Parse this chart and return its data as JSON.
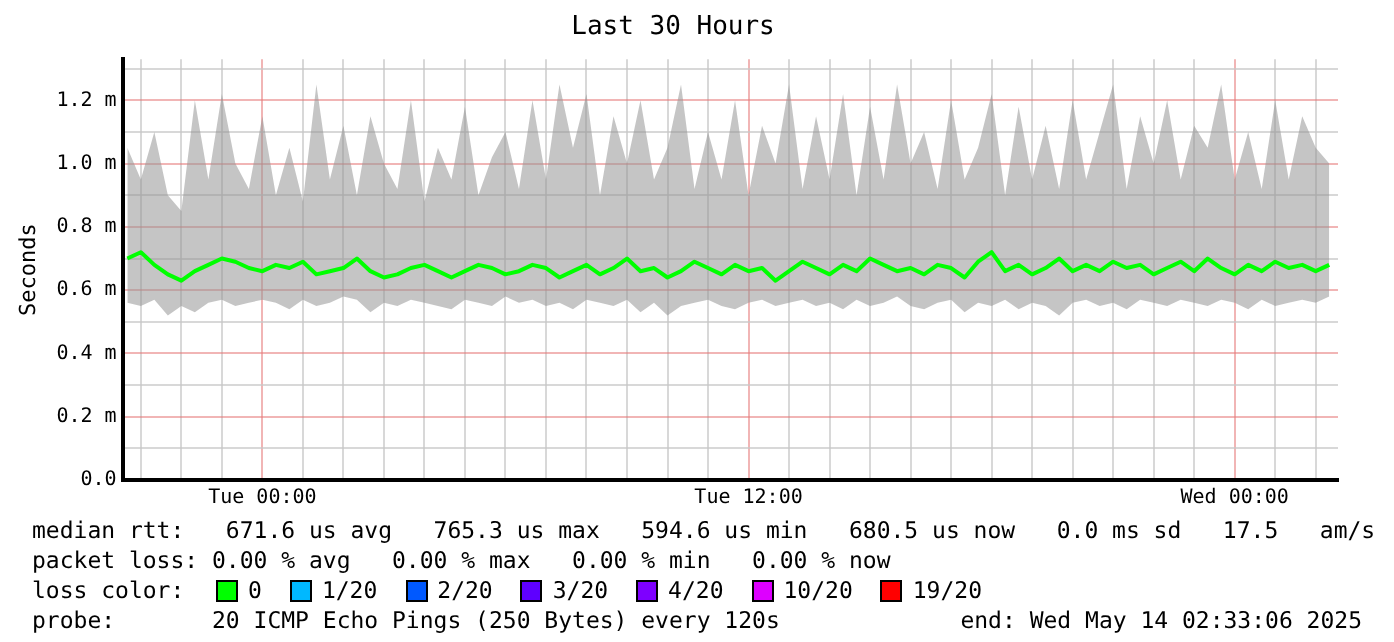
{
  "chart_data": {
    "type": "line",
    "title": "Last 30 Hours",
    "ylabel": "Seconds",
    "x": [
      "2025-05-12T20:40",
      "2025-05-12T21:00",
      "2025-05-12T21:20",
      "2025-05-12T21:40",
      "2025-05-12T22:00",
      "2025-05-12T22:20",
      "2025-05-12T22:40",
      "2025-05-12T23:00",
      "2025-05-12T23:20",
      "2025-05-12T23:40",
      "2025-05-13T00:00",
      "2025-05-13T00:20",
      "2025-05-13T00:40",
      "2025-05-13T01:00",
      "2025-05-13T01:20",
      "2025-05-13T01:40",
      "2025-05-13T02:00",
      "2025-05-13T02:20",
      "2025-05-13T02:40",
      "2025-05-13T03:00",
      "2025-05-13T03:20",
      "2025-05-13T03:40",
      "2025-05-13T04:00",
      "2025-05-13T04:20",
      "2025-05-13T04:40",
      "2025-05-13T05:00",
      "2025-05-13T05:20",
      "2025-05-13T05:40",
      "2025-05-13T06:00",
      "2025-05-13T06:20",
      "2025-05-13T06:40",
      "2025-05-13T07:00",
      "2025-05-13T07:20",
      "2025-05-13T07:40",
      "2025-05-13T08:00",
      "2025-05-13T08:20",
      "2025-05-13T08:40",
      "2025-05-13T09:00",
      "2025-05-13T09:20",
      "2025-05-13T09:40",
      "2025-05-13T10:00",
      "2025-05-13T10:20",
      "2025-05-13T10:40",
      "2025-05-13T11:00",
      "2025-05-13T11:20",
      "2025-05-13T11:40",
      "2025-05-13T12:00",
      "2025-05-13T12:20",
      "2025-05-13T12:40",
      "2025-05-13T13:00",
      "2025-05-13T13:20",
      "2025-05-13T13:40",
      "2025-05-13T14:00",
      "2025-05-13T14:20",
      "2025-05-13T14:40",
      "2025-05-13T15:00",
      "2025-05-13T15:20",
      "2025-05-13T15:40",
      "2025-05-13T16:00",
      "2025-05-13T16:20",
      "2025-05-13T16:40",
      "2025-05-13T17:00",
      "2025-05-13T17:20",
      "2025-05-13T17:40",
      "2025-05-13T18:00",
      "2025-05-13T18:20",
      "2025-05-13T18:40",
      "2025-05-13T19:00",
      "2025-05-13T19:20",
      "2025-05-13T19:40",
      "2025-05-13T20:00",
      "2025-05-13T20:20",
      "2025-05-13T20:40",
      "2025-05-13T21:00",
      "2025-05-13T21:20",
      "2025-05-13T21:40",
      "2025-05-13T22:00",
      "2025-05-13T22:20",
      "2025-05-13T22:40",
      "2025-05-13T23:00",
      "2025-05-13T23:20",
      "2025-05-13T23:40",
      "2025-05-14T00:00",
      "2025-05-14T00:20",
      "2025-05-14T00:40",
      "2025-05-14T01:00",
      "2025-05-14T01:20",
      "2025-05-14T01:40",
      "2025-05-14T02:00",
      "2025-05-14T02:20"
    ],
    "series": [
      {
        "color": "#00ff00",
        "values": [
          0.7,
          0.72,
          0.68,
          0.65,
          0.63,
          0.66,
          0.68,
          0.7,
          0.69,
          0.67,
          0.66,
          0.68,
          0.67,
          0.69,
          0.65,
          0.66,
          0.67,
          0.7,
          0.66,
          0.64,
          0.65,
          0.67,
          0.68,
          0.66,
          0.64,
          0.66,
          0.68,
          0.67,
          0.65,
          0.66,
          0.68,
          0.67,
          0.64,
          0.66,
          0.68,
          0.65,
          0.67,
          0.7,
          0.66,
          0.67,
          0.64,
          0.66,
          0.69,
          0.67,
          0.65,
          0.68,
          0.66,
          0.67,
          0.63,
          0.66,
          0.69,
          0.67,
          0.65,
          0.68,
          0.66,
          0.7,
          0.68,
          0.66,
          0.67,
          0.65,
          0.68,
          0.67,
          0.64,
          0.69,
          0.72,
          0.66,
          0.68,
          0.65,
          0.67,
          0.7,
          0.66,
          0.68,
          0.66,
          0.69,
          0.67,
          0.68,
          0.65,
          0.67,
          0.69,
          0.66,
          0.7,
          0.67,
          0.65,
          0.68,
          0.66,
          0.69,
          0.67,
          0.68,
          0.66,
          0.68
        ],
        "lower": [
          0.56,
          0.55,
          0.57,
          0.52,
          0.55,
          0.53,
          0.56,
          0.57,
          0.55,
          0.56,
          0.57,
          0.56,
          0.54,
          0.57,
          0.55,
          0.56,
          0.58,
          0.57,
          0.53,
          0.56,
          0.55,
          0.57,
          0.56,
          0.55,
          0.54,
          0.57,
          0.56,
          0.55,
          0.58,
          0.56,
          0.57,
          0.55,
          0.56,
          0.54,
          0.57,
          0.56,
          0.55,
          0.57,
          0.53,
          0.56,
          0.52,
          0.55,
          0.56,
          0.57,
          0.55,
          0.54,
          0.56,
          0.57,
          0.55,
          0.56,
          0.57,
          0.55,
          0.56,
          0.54,
          0.57,
          0.55,
          0.56,
          0.58,
          0.55,
          0.54,
          0.56,
          0.57,
          0.53,
          0.56,
          0.55,
          0.57,
          0.54,
          0.56,
          0.55,
          0.52,
          0.56,
          0.57,
          0.55,
          0.56,
          0.54,
          0.57,
          0.56,
          0.55,
          0.57,
          0.56,
          0.55,
          0.57,
          0.56,
          0.54,
          0.57,
          0.55,
          0.56,
          0.57,
          0.56,
          0.58
        ],
        "upper": [
          1.05,
          0.95,
          1.1,
          0.9,
          0.85,
          1.2,
          0.95,
          1.22,
          1.0,
          0.92,
          1.15,
          0.9,
          1.05,
          0.88,
          1.25,
          0.95,
          1.12,
          0.9,
          1.15,
          1.0,
          0.92,
          1.2,
          0.88,
          1.05,
          0.95,
          1.18,
          0.9,
          1.02,
          1.1,
          0.92,
          1.2,
          0.95,
          1.25,
          1.05,
          1.22,
          0.9,
          1.15,
          1.0,
          1.2,
          0.95,
          1.05,
          1.25,
          0.92,
          1.1,
          0.95,
          1.2,
          0.9,
          1.12,
          1.0,
          1.25,
          0.92,
          1.15,
          0.95,
          1.22,
          0.9,
          1.18,
          0.95,
          1.25,
          1.0,
          1.1,
          0.92,
          1.2,
          0.95,
          1.05,
          1.22,
          0.9,
          1.18,
          0.95,
          1.12,
          0.92,
          1.2,
          0.95,
          1.1,
          1.25,
          0.92,
          1.15,
          1.0,
          1.2,
          0.95,
          1.12,
          1.05,
          1.25,
          0.95,
          1.1,
          0.92,
          1.2,
          0.95,
          1.15,
          1.05,
          1.0
        ]
      }
    ],
    "xlim": [
      "2025-05-12T20:33",
      "2025-05-14T02:33"
    ],
    "xticks": [
      {
        "value": "2025-05-12T21:00",
        "label": null
      },
      {
        "value": "2025-05-12T22:00",
        "label": null
      },
      {
        "value": "2025-05-12T23:00",
        "label": null
      },
      {
        "value": "2025-05-13T00:00",
        "label": "Tue 00:00"
      },
      {
        "value": "2025-05-13T01:00",
        "label": null
      },
      {
        "value": "2025-05-13T02:00",
        "label": null
      },
      {
        "value": "2025-05-13T03:00",
        "label": null
      },
      {
        "value": "2025-05-13T04:00",
        "label": null
      },
      {
        "value": "2025-05-13T05:00",
        "label": null
      },
      {
        "value": "2025-05-13T06:00",
        "label": null
      },
      {
        "value": "2025-05-13T07:00",
        "label": null
      },
      {
        "value": "2025-05-13T08:00",
        "label": null
      },
      {
        "value": "2025-05-13T09:00",
        "label": null
      },
      {
        "value": "2025-05-13T10:00",
        "label": null
      },
      {
        "value": "2025-05-13T11:00",
        "label": null
      },
      {
        "value": "2025-05-13T12:00",
        "label": "Tue 12:00"
      },
      {
        "value": "2025-05-13T13:00",
        "label": null
      },
      {
        "value": "2025-05-13T14:00",
        "label": null
      },
      {
        "value": "2025-05-13T15:00",
        "label": null
      },
      {
        "value": "2025-05-13T16:00",
        "label": null
      },
      {
        "value": "2025-05-13T17:00",
        "label": null
      },
      {
        "value": "2025-05-13T18:00",
        "label": null
      },
      {
        "value": "2025-05-13T19:00",
        "label": null
      },
      {
        "value": "2025-05-13T20:00",
        "label": null
      },
      {
        "value": "2025-05-13T21:00",
        "label": null
      },
      {
        "value": "2025-05-13T22:00",
        "label": null
      },
      {
        "value": "2025-05-13T23:00",
        "label": null
      },
      {
        "value": "2025-05-14T00:00",
        "label": "Wed 00:00"
      },
      {
        "value": "2025-05-14T01:00",
        "label": null
      },
      {
        "value": "2025-05-14T02:00",
        "label": null
      }
    ],
    "ylim": [
      0,
      1.33
    ],
    "yticks": [
      {
        "value": 0,
        "label": "0.0"
      },
      {
        "value": 0.1,
        "label": null
      },
      {
        "value": 0.2,
        "label": "0.2 m"
      },
      {
        "value": 0.3,
        "label": null
      },
      {
        "value": 0.4,
        "label": "0.4 m"
      },
      {
        "value": 0.5,
        "label": null
      },
      {
        "value": 0.6,
        "label": "0.6 m"
      },
      {
        "value": 0.7,
        "label": null
      },
      {
        "value": 0.8,
        "label": "0.8 m"
      },
      {
        "value": 0.9,
        "label": null
      },
      {
        "value": 1.0,
        "label": "1.0 m"
      },
      {
        "value": 1.1,
        "label": null
      },
      {
        "value": 1.2,
        "label": "1.2 m"
      },
      {
        "value": 1.3,
        "label": null
      }
    ],
    "grid": true,
    "legend": false,
    "marker": "none",
    "line_style": "solid",
    "annotations": [
      "median rtt:   671.6 us avg   765.3 us max   594.6 us min   680.5 us now   0.0 ms sd   17.5   am/s",
      "packet loss: 0.00 % avg   0.00 % max   0.00 % min   0.00 % now",
      "loss color:",
      "0",
      "1/20",
      "2/20",
      "3/20",
      "4/20",
      "10/20",
      "19/20",
      "probe:       20 ICMP Echo Pings (250 Bytes) every 120s",
      "end: Wed May 14 02:33:06 2025"
    ]
  }
}
